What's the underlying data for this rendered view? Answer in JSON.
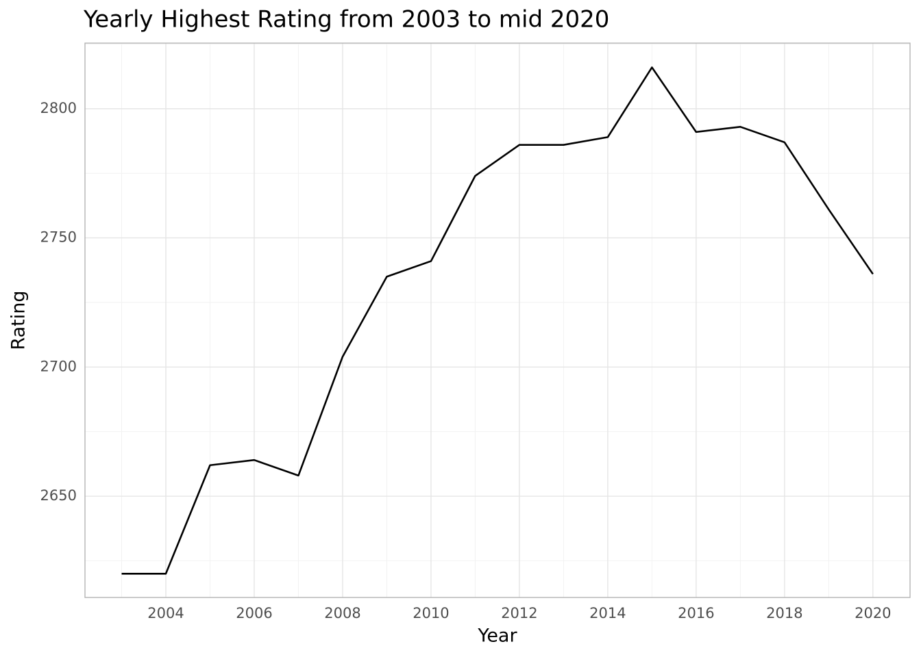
{
  "chart_data": {
    "type": "line",
    "title": "Yearly Highest Rating from 2003 to mid 2020",
    "x_label": "Year",
    "y_label": "Rating",
    "x": [
      2003,
      2004,
      2005,
      2006,
      2007,
      2008,
      2009,
      2010,
      2011,
      2012,
      2013,
      2014,
      2015,
      2016,
      2017,
      2018,
      2019,
      2020
    ],
    "series": [
      {
        "name": "Rating",
        "color": "#000000",
        "values": [
          2620,
          2620,
          2662,
          2664,
          2658,
          2704,
          2735,
          2741,
          2774,
          2786,
          2786,
          2789,
          2816,
          2791,
          2793,
          2787,
          2761,
          2736
        ]
      }
    ],
    "xlim": [
      2002.17,
      2020.84
    ],
    "ylim": [
      2610.8,
      2825.4
    ],
    "xticks": [
      2004,
      2006,
      2008,
      2010,
      2012,
      2014,
      2016,
      2018,
      2020
    ],
    "yticks": [
      2650,
      2700,
      2750,
      2800
    ],
    "grid": true
  }
}
